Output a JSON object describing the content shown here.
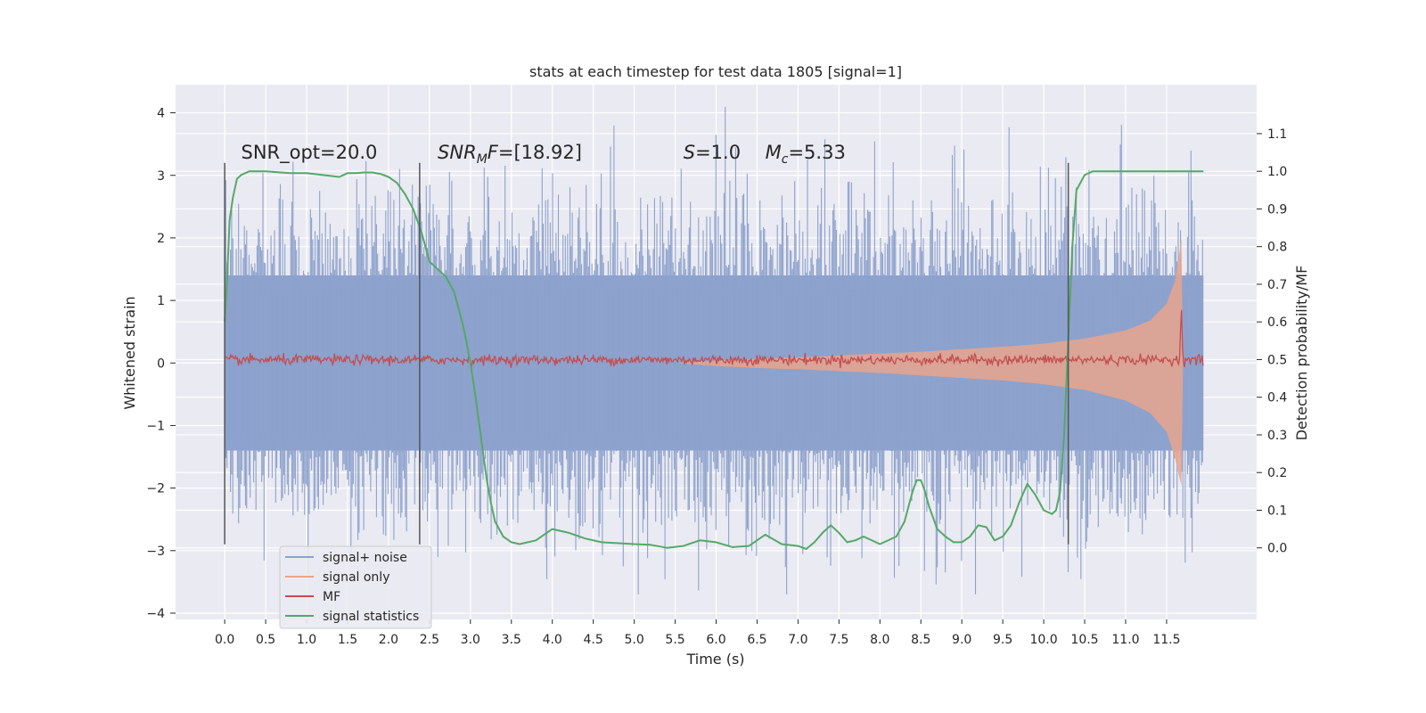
{
  "chart_data": {
    "type": "line",
    "title": "stats at each timestep for test data 1805 [signal=1]",
    "xlabel": "Time (s)",
    "ylabel": "Whitened strain",
    "y2label": "Detection probability/MF",
    "xlim": [
      -0.6,
      12.6
    ],
    "ylim": [
      -4.1,
      4.45
    ],
    "y2lim": [
      -0.19,
      1.23
    ],
    "xticks": [
      0.0,
      0.5,
      1.0,
      1.5,
      2.0,
      2.5,
      3.0,
      3.5,
      4.0,
      4.5,
      5.0,
      5.5,
      6.0,
      6.5,
      7.0,
      7.5,
      8.0,
      8.5,
      9.0,
      9.5,
      10.0,
      10.5,
      11.0,
      11.5
    ],
    "xtick_labels": [
      "0.0",
      "0.5",
      "1.0",
      "1.5",
      "2.0",
      "2.5",
      "3.0",
      "3.5",
      "4.0",
      "4.5",
      "5.0",
      "5.5",
      "6.0",
      "6.5",
      "7.0",
      "7.5",
      "8.0",
      "8.5",
      "9.0",
      "9.5",
      "10.0",
      "10.5",
      "11.0",
      "11.5"
    ],
    "yticks": [
      -4,
      -3,
      -2,
      -1,
      0,
      1,
      2,
      3,
      4
    ],
    "ytick_labels": [
      "−4",
      "−3",
      "−2",
      "−1",
      "0",
      "1",
      "2",
      "3",
      "4"
    ],
    "y2ticks": [
      0.0,
      0.1,
      0.2,
      0.3,
      0.4,
      0.5,
      0.6,
      0.7,
      0.8,
      0.9,
      1.0,
      1.1
    ],
    "y2tick_labels": [
      "0.0",
      "0.1",
      "0.2",
      "0.3",
      "0.4",
      "0.5",
      "0.6",
      "0.7",
      "0.8",
      "0.9",
      "1.0",
      "1.1"
    ],
    "grid": true,
    "background": "#eaeaf2",
    "legend_position": "lower-left",
    "series": [
      {
        "name": "signal+ noise",
        "color": "#8da2cc",
        "axis": "left",
        "kind": "noise_band",
        "x_range": [
          0.0,
          11.95
        ],
        "envelope": 1.4,
        "peak_range": [
          -3.7,
          4.1
        ]
      },
      {
        "name": "signal only",
        "color": "#e8a48c",
        "axis": "left",
        "kind": "chirp_envelope",
        "x": [
          5.5,
          6.0,
          6.5,
          7.0,
          7.5,
          8.0,
          8.5,
          9.0,
          9.5,
          10.0,
          10.5,
          11.0,
          11.3,
          11.5,
          11.6,
          11.65,
          11.68,
          11.7
        ],
        "upper": [
          0.0,
          0.04,
          0.07,
          0.09,
          0.12,
          0.15,
          0.18,
          0.22,
          0.26,
          0.31,
          0.39,
          0.52,
          0.68,
          0.95,
          1.3,
          1.7,
          2.0,
          0.1
        ],
        "lower": [
          0.0,
          -0.05,
          -0.08,
          -0.1,
          -0.13,
          -0.16,
          -0.2,
          -0.24,
          -0.28,
          -0.34,
          -0.43,
          -0.6,
          -0.8,
          -1.1,
          -1.5,
          -1.8,
          -1.95,
          -0.1
        ]
      },
      {
        "name": "MF",
        "color": "#c44e52",
        "axis": "left",
        "kind": "noise_line",
        "x_range": [
          0.0,
          11.95
        ],
        "amplitude": 0.07,
        "spike_x": 11.68,
        "spike_y": 1.0
      },
      {
        "name": "signal statistics",
        "color": "#55a868",
        "axis": "right",
        "x": [
          0.0,
          0.03,
          0.06,
          0.1,
          0.15,
          0.2,
          0.3,
          0.5,
          0.8,
          1.0,
          1.2,
          1.4,
          1.5,
          1.6,
          1.7,
          1.8,
          1.9,
          2.0,
          2.1,
          2.2,
          2.3,
          2.35,
          2.4,
          2.45,
          2.5,
          2.55,
          2.6,
          2.7,
          2.8,
          2.9,
          2.95,
          3.0,
          3.05,
          3.1,
          3.15,
          3.2,
          3.25,
          3.3,
          3.4,
          3.5,
          3.6,
          3.8,
          4.0,
          4.2,
          4.4,
          4.6,
          5.0,
          5.2,
          5.4,
          5.6,
          5.8,
          6.0,
          6.2,
          6.4,
          6.6,
          6.8,
          7.0,
          7.1,
          7.2,
          7.3,
          7.4,
          7.5,
          7.6,
          7.7,
          7.8,
          8.0,
          8.2,
          8.3,
          8.4,
          8.45,
          8.5,
          8.55,
          8.6,
          8.7,
          8.8,
          8.9,
          9.0,
          9.1,
          9.2,
          9.3,
          9.4,
          9.5,
          9.6,
          9.7,
          9.8,
          9.9,
          10.0,
          10.1,
          10.15,
          10.2,
          10.25,
          10.3,
          10.35,
          10.4,
          10.5,
          10.6,
          11.0,
          11.5,
          11.95
        ],
        "y": [
          0.6,
          0.72,
          0.87,
          0.93,
          0.98,
          0.99,
          1.0,
          1.0,
          0.995,
          0.995,
          0.99,
          0.985,
          0.995,
          0.995,
          0.997,
          0.997,
          0.993,
          0.985,
          0.97,
          0.94,
          0.9,
          0.87,
          0.84,
          0.8,
          0.76,
          0.75,
          0.74,
          0.72,
          0.68,
          0.6,
          0.55,
          0.49,
          0.42,
          0.34,
          0.26,
          0.18,
          0.12,
          0.07,
          0.03,
          0.015,
          0.01,
          0.02,
          0.05,
          0.04,
          0.025,
          0.015,
          0.01,
          0.008,
          0.0,
          0.005,
          0.02,
          0.015,
          0.002,
          0.005,
          0.035,
          0.01,
          0.005,
          -0.003,
          0.015,
          0.04,
          0.06,
          0.04,
          0.015,
          0.02,
          0.03,
          0.01,
          0.03,
          0.07,
          0.15,
          0.18,
          0.18,
          0.15,
          0.11,
          0.05,
          0.03,
          0.015,
          0.015,
          0.03,
          0.06,
          0.055,
          0.02,
          0.03,
          0.06,
          0.12,
          0.17,
          0.14,
          0.1,
          0.09,
          0.1,
          0.15,
          0.3,
          0.55,
          0.8,
          0.95,
          0.99,
          1.0,
          1.0,
          1.0,
          1.0
        ]
      }
    ],
    "vlines": [
      {
        "x": 0.0,
        "y_from": -2.9,
        "y_to": 3.2
      },
      {
        "x": 2.38,
        "y_from": -2.9,
        "y_to": 3.2
      },
      {
        "x": 10.3,
        "y_from": -2.9,
        "y_to": 3.2
      }
    ],
    "annotations": [
      {
        "key": "snr_opt",
        "parts": [
          {
            "t": "SNR_opt=20.0",
            "italic": false
          }
        ],
        "x": 0.2,
        "y": 3.27
      },
      {
        "key": "snr_mf",
        "parts": [
          {
            "t": "SNR",
            "italic": true
          },
          {
            "t": "M",
            "italic": true,
            "sub": true
          },
          {
            "t": "F",
            "italic": true
          },
          {
            "t": "=[18.92]",
            "italic": false
          }
        ],
        "x": 2.6,
        "y": 3.27
      },
      {
        "key": "s",
        "parts": [
          {
            "t": "S",
            "italic": true
          },
          {
            "t": "=1.0",
            "italic": false
          }
        ],
        "x": 5.6,
        "y": 3.27
      },
      {
        "key": "mc",
        "parts": [
          {
            "t": "M",
            "italic": true
          },
          {
            "t": "c",
            "italic": true,
            "sub": true
          },
          {
            "t": "=5.33",
            "italic": false
          }
        ],
        "x": 6.6,
        "y": 3.27
      }
    ]
  }
}
